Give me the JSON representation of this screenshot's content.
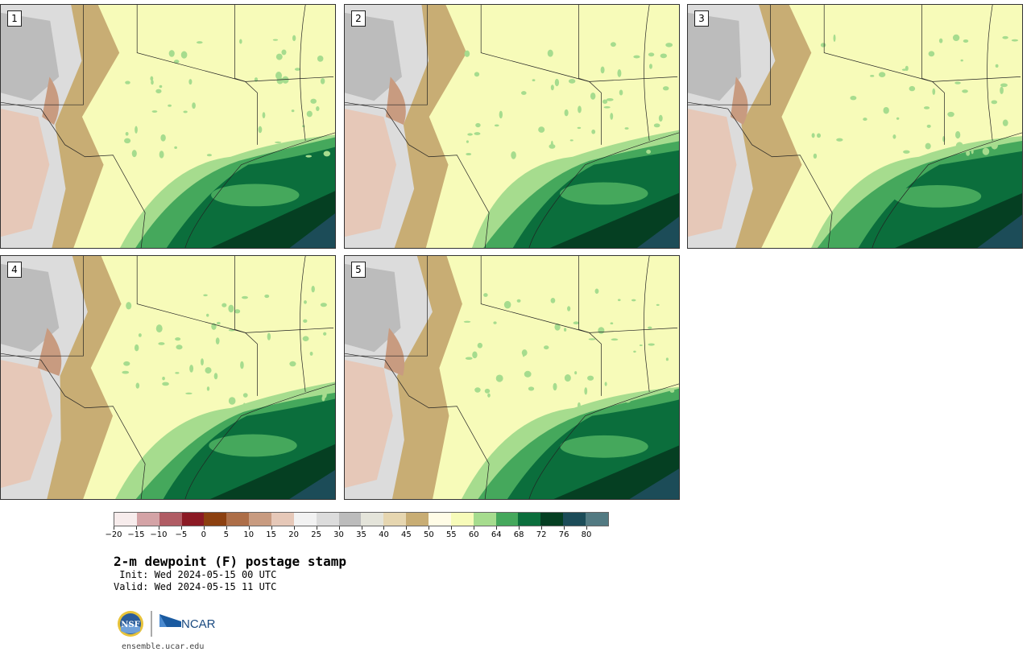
{
  "figure": {
    "title": "2-m dewpoint (F) postage stamp",
    "init": " Init: Wed 2024-05-15 00 UTC",
    "valid": "Valid: Wed 2024-05-15 11 UTC",
    "site": "ensemble.ucar.edu",
    "logo_left": "NSF",
    "logo_right": "NCAR"
  },
  "panels": [
    {
      "label": "1"
    },
    {
      "label": "2"
    },
    {
      "label": "3"
    },
    {
      "label": "4"
    },
    {
      "label": "5"
    }
  ],
  "colorbar": {
    "tick_labels": [
      "−20",
      "−15",
      "−10",
      "−5",
      "0",
      "5",
      "10",
      "15",
      "20",
      "25",
      "30",
      "35",
      "40",
      "45",
      "50",
      "55",
      "60",
      "64",
      "68",
      "72",
      "76",
      "80"
    ],
    "colors": [
      "#f7ecec",
      "#d4a3a6",
      "#b05c64",
      "#8b1a24",
      "#8c4010",
      "#ad6e48",
      "#c89b80",
      "#e6c8b8",
      "#f2f2f2",
      "#dcdcdc",
      "#bcbcbc",
      "#e4e4da",
      "#e6d6b0",
      "#c8ad74",
      "#fffce6",
      "#f7fbb9",
      "#a6dc8e",
      "#45a85c",
      "#0b6e3c",
      "#053f22",
      "#1c4c58",
      "#527a82"
    ]
  }
}
